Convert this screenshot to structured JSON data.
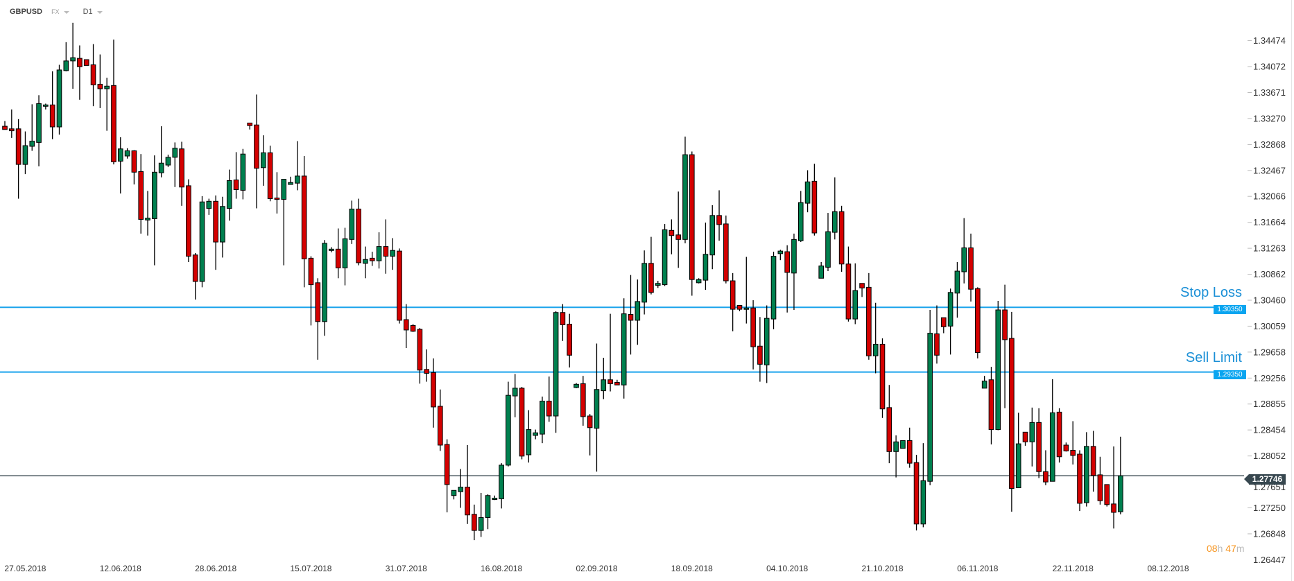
{
  "header": {
    "symbol": "GBPUSD",
    "market": "FX",
    "timeframe": "D1"
  },
  "colors": {
    "up": "#00804f",
    "down": "#d40000",
    "level": "#1aa3ec",
    "current": "#37474f",
    "timer": "#f7941d"
  },
  "levels": [
    {
      "name": "Stop Loss",
      "price": 1.3035,
      "label": "1.30350"
    },
    {
      "name": "Sell Limit",
      "price": 1.2935,
      "label": "1.29350"
    }
  ],
  "current_price": {
    "price": 1.27746,
    "label": "1.27746"
  },
  "timer": {
    "hours": "08",
    "h": "h",
    "minutes": "47",
    "m": "m"
  },
  "chart_data": {
    "type": "candlestick",
    "title": "GBPUSD D1",
    "ylim": [
      1.26447,
      1.35102
    ],
    "y_ticks": [
      "1.34474",
      "1.34072",
      "1.33671",
      "1.33270",
      "1.32868",
      "1.32467",
      "1.32066",
      "1.31664",
      "1.31263",
      "1.30862",
      "1.30460",
      "1.30059",
      "1.29658",
      "1.29256",
      "1.28855",
      "1.28454",
      "1.28052",
      "1.27651",
      "1.27250",
      "1.26848",
      "1.26447"
    ],
    "x_ticks": [
      {
        "candle": 3,
        "label": "27.05.2018"
      },
      {
        "candle": 17,
        "label": "12.06.2018"
      },
      {
        "candle": 31,
        "label": "28.06.2018"
      },
      {
        "candle": 45,
        "label": "15.07.2018"
      },
      {
        "candle": 59,
        "label": "31.07.2018"
      },
      {
        "candle": 73,
        "label": "16.08.2018"
      },
      {
        "candle": 87,
        "label": "02.09.2018"
      },
      {
        "candle": 101,
        "label": "18.09.2018"
      },
      {
        "candle": 115,
        "label": "04.10.2018"
      },
      {
        "candle": 129,
        "label": "21.10.2018"
      },
      {
        "candle": 143,
        "label": "06.11.2018"
      },
      {
        "candle": 157,
        "label": "22.11.2018"
      },
      {
        "candle": 171,
        "label": "08.12.2018"
      }
    ],
    "ohlc_fields": [
      "open",
      "high",
      "low",
      "close"
    ],
    "ohlc": [
      [
        1.3315,
        1.3323,
        1.331,
        1.331
      ],
      [
        1.3311,
        1.3341,
        1.3297,
        1.3308
      ],
      [
        1.3311,
        1.3326,
        1.3203,
        1.3256
      ],
      [
        1.3256,
        1.3307,
        1.3241,
        1.3285
      ],
      [
        1.3284,
        1.3349,
        1.3277,
        1.3292
      ],
      [
        1.329,
        1.3363,
        1.3253,
        1.335
      ],
      [
        1.3346,
        1.335,
        1.3341,
        1.3348
      ],
      [
        1.3348,
        1.34,
        1.3295,
        1.3314
      ],
      [
        1.3314,
        1.341,
        1.3302,
        1.3402
      ],
      [
        1.3401,
        1.3445,
        1.34,
        1.3416
      ],
      [
        1.3416,
        1.3475,
        1.3373,
        1.3421
      ],
      [
        1.342,
        1.344,
        1.3356,
        1.3407
      ],
      [
        1.3418,
        1.3418,
        1.3409,
        1.3409
      ],
      [
        1.341,
        1.3442,
        1.3346,
        1.3379
      ],
      [
        1.338,
        1.3426,
        1.3343,
        1.3373
      ],
      [
        1.3373,
        1.339,
        1.3308,
        1.3377
      ],
      [
        1.3378,
        1.3449,
        1.3256,
        1.326
      ],
      [
        1.3261,
        1.3298,
        1.3211,
        1.328
      ],
      [
        1.3269,
        1.3281,
        1.3265,
        1.3277
      ],
      [
        1.3277,
        1.3278,
        1.3225,
        1.3244
      ],
      [
        1.3245,
        1.3272,
        1.3149,
        1.3171
      ],
      [
        1.317,
        1.3215,
        1.3146,
        1.3173
      ],
      [
        1.3172,
        1.327,
        1.31,
        1.3244
      ],
      [
        1.3243,
        1.3315,
        1.3236,
        1.3258
      ],
      [
        1.3255,
        1.3271,
        1.3252,
        1.3267
      ],
      [
        1.3267,
        1.329,
        1.3221,
        1.3281
      ],
      [
        1.328,
        1.3291,
        1.3192,
        1.3221
      ],
      [
        1.3223,
        1.3233,
        1.3105,
        1.3114
      ],
      [
        1.3116,
        1.3119,
        1.3047,
        1.3075
      ],
      [
        1.3075,
        1.3207,
        1.3066,
        1.3198
      ],
      [
        1.3188,
        1.3203,
        1.3178,
        1.3199
      ],
      [
        1.3199,
        1.3208,
        1.3093,
        1.3136
      ],
      [
        1.3136,
        1.3206,
        1.3112,
        1.3191
      ],
      [
        1.3188,
        1.3248,
        1.3169,
        1.3231
      ],
      [
        1.3232,
        1.3275,
        1.3203,
        1.3217
      ],
      [
        1.3216,
        1.328,
        1.3202,
        1.3272
      ],
      [
        1.332,
        1.332,
        1.331,
        1.3316
      ],
      [
        1.3317,
        1.3364,
        1.3188,
        1.325
      ],
      [
        1.3251,
        1.3301,
        1.3223,
        1.3274
      ],
      [
        1.3274,
        1.3285,
        1.3199,
        1.3203
      ],
      [
        1.3204,
        1.3244,
        1.318,
        1.3202
      ],
      [
        1.3202,
        1.3233,
        1.31,
        1.3233
      ],
      [
        1.3225,
        1.3237,
        1.3225,
        1.3228
      ],
      [
        1.3227,
        1.3292,
        1.3216,
        1.3238
      ],
      [
        1.3238,
        1.3269,
        1.3066,
        1.311
      ],
      [
        1.3111,
        1.3114,
        1.3007,
        1.307
      ],
      [
        1.3073,
        1.308,
        1.2954,
        1.3013
      ],
      [
        1.3013,
        1.3139,
        1.2991,
        1.3134
      ],
      [
        1.3123,
        1.3128,
        1.312,
        1.3125
      ],
      [
        1.3125,
        1.3157,
        1.308,
        1.3096
      ],
      [
        1.3096,
        1.3158,
        1.3069,
        1.3141
      ],
      [
        1.314,
        1.32,
        1.3133,
        1.3187
      ],
      [
        1.3187,
        1.3203,
        1.31,
        1.3104
      ],
      [
        1.3103,
        1.3129,
        1.308,
        1.3109
      ],
      [
        1.3111,
        1.3121,
        1.3099,
        1.3107
      ],
      [
        1.3107,
        1.3151,
        1.3095,
        1.3129
      ],
      [
        1.3129,
        1.3171,
        1.3087,
        1.3114
      ],
      [
        1.3114,
        1.3142,
        1.3093,
        1.3123
      ],
      [
        1.3122,
        1.3126,
        1.301,
        1.3015
      ],
      [
        1.3016,
        1.304,
        1.2972,
        1.3
      ],
      [
        1.3007,
        1.3009,
        1.2997,
        1.2998
      ],
      [
        1.3001,
        1.3003,
        1.2917,
        1.2938
      ],
      [
        1.2939,
        1.297,
        1.292,
        1.2933
      ],
      [
        1.2934,
        1.2956,
        1.2849,
        1.2881
      ],
      [
        1.2882,
        1.2908,
        1.2813,
        1.2822
      ],
      [
        1.2823,
        1.2831,
        1.2718,
        1.2761
      ],
      [
        1.2744,
        1.2752,
        1.2738,
        1.2752
      ],
      [
        1.275,
        1.2785,
        1.2725,
        1.2757
      ],
      [
        1.2757,
        1.2822,
        1.27,
        1.2714
      ],
      [
        1.2715,
        1.273,
        1.2675,
        1.269
      ],
      [
        1.269,
        1.2748,
        1.268,
        1.271
      ],
      [
        1.271,
        1.2746,
        1.2692,
        1.2744
      ],
      [
        1.2738,
        1.2744,
        1.2737,
        1.274
      ],
      [
        1.2739,
        1.2794,
        1.2724,
        1.2791
      ],
      [
        1.2791,
        1.292,
        1.2789,
        1.2899
      ],
      [
        1.2898,
        1.2932,
        1.2865,
        1.291
      ],
      [
        1.291,
        1.2912,
        1.28,
        1.2805
      ],
      [
        1.2807,
        1.2876,
        1.2795,
        1.2846
      ],
      [
        1.2837,
        1.2846,
        1.2831,
        1.2841
      ],
      [
        1.2839,
        1.2897,
        1.2825,
        1.289
      ],
      [
        1.289,
        1.2928,
        1.2858,
        1.2867
      ],
      [
        1.2867,
        1.3029,
        1.2841,
        1.3027
      ],
      [
        1.3027,
        1.304,
        1.2983,
        1.3008
      ],
      [
        1.3009,
        1.3025,
        1.2942,
        1.2961
      ],
      [
        1.2911,
        1.2918,
        1.291,
        1.2916
      ],
      [
        1.2917,
        1.2929,
        1.2852,
        1.2866
      ],
      [
        1.2867,
        1.287,
        1.2806,
        1.2849
      ],
      [
        1.2848,
        1.2979,
        1.2781,
        1.2908
      ],
      [
        1.2906,
        1.2957,
        1.2893,
        1.2923
      ],
      [
        1.2923,
        1.3025,
        1.2905,
        1.2917
      ],
      [
        1.2919,
        1.2923,
        1.2915,
        1.2915
      ],
      [
        1.2915,
        1.3049,
        1.2894,
        1.3025
      ],
      [
        1.3024,
        1.3085,
        1.2962,
        1.3015
      ],
      [
        1.3015,
        1.3078,
        1.2977,
        1.3044
      ],
      [
        1.3043,
        1.3123,
        1.3024,
        1.3103
      ],
      [
        1.3103,
        1.3144,
        1.3055,
        1.3058
      ],
      [
        1.3069,
        1.3076,
        1.3065,
        1.3072
      ],
      [
        1.307,
        1.3164,
        1.3068,
        1.3155
      ],
      [
        1.3154,
        1.3171,
        1.3117,
        1.3146
      ],
      [
        1.3147,
        1.3214,
        1.3096,
        1.314
      ],
      [
        1.314,
        1.3299,
        1.3134,
        1.3271
      ],
      [
        1.3271,
        1.3276,
        1.3053,
        1.3078
      ],
      [
        1.3073,
        1.308,
        1.3072,
        1.3078
      ],
      [
        1.3077,
        1.3166,
        1.3062,
        1.3117
      ],
      [
        1.3116,
        1.3193,
        1.3094,
        1.3177
      ],
      [
        1.3177,
        1.3216,
        1.3138,
        1.3163
      ],
      [
        1.3164,
        1.3177,
        1.3072,
        1.3076
      ],
      [
        1.3076,
        1.3088,
        1.2998,
        1.3032
      ],
      [
        1.3038,
        1.3038,
        1.3029,
        1.3032
      ],
      [
        1.3032,
        1.3113,
        1.301,
        1.3034
      ],
      [
        1.3034,
        1.3046,
        1.2939,
        1.2974
      ],
      [
        1.2975,
        1.302,
        1.292,
        1.2947
      ],
      [
        1.2946,
        1.3038,
        1.2918,
        1.3018
      ],
      [
        1.3017,
        1.3121,
        1.3001,
        1.3114
      ],
      [
        1.3118,
        1.3124,
        1.3108,
        1.3122
      ],
      [
        1.3121,
        1.3131,
        1.3027,
        1.3089
      ],
      [
        1.3088,
        1.3149,
        1.3031,
        1.314
      ],
      [
        1.3138,
        1.3215,
        1.3136,
        1.3197
      ],
      [
        1.3196,
        1.3247,
        1.3182,
        1.3229
      ],
      [
        1.323,
        1.3257,
        1.3146,
        1.315
      ],
      [
        1.308,
        1.3105,
        1.308,
        1.3099
      ],
      [
        1.3097,
        1.3181,
        1.3091,
        1.3152
      ],
      [
        1.3151,
        1.3236,
        1.314,
        1.3183
      ],
      [
        1.3183,
        1.3192,
        1.309,
        1.3102
      ],
      [
        1.3102,
        1.3129,
        1.3013,
        1.3017
      ],
      [
        1.3017,
        1.3103,
        1.3009,
        1.3061
      ],
      [
        1.3072,
        1.3072,
        1.3051,
        1.3065
      ],
      [
        1.3066,
        1.3088,
        1.2954,
        1.296
      ],
      [
        1.296,
        1.3042,
        1.2933,
        1.2978
      ],
      [
        1.2978,
        1.2987,
        1.2864,
        1.2878
      ],
      [
        1.288,
        1.2915,
        1.2794,
        1.2812
      ],
      [
        1.2812,
        1.2837,
        1.2772,
        1.2827
      ],
      [
        1.2817,
        1.2829,
        1.2817,
        1.2829
      ],
      [
        1.2829,
        1.2849,
        1.2787,
        1.2794
      ],
      [
        1.2795,
        1.2807,
        1.269,
        1.27
      ],
      [
        1.27,
        1.2825,
        1.2695,
        1.2767
      ],
      [
        1.2766,
        1.3031,
        1.276,
        1.2995
      ],
      [
        1.2994,
        1.3038,
        1.2948,
        1.2961
      ],
      [
        1.3019,
        1.3019,
        1.2995,
        1.3005
      ],
      [
        1.3006,
        1.3064,
        1.2962,
        1.3058
      ],
      [
        1.3057,
        1.3105,
        1.3019,
        1.3091
      ],
      [
        1.309,
        1.3173,
        1.3072,
        1.3127
      ],
      [
        1.3127,
        1.3149,
        1.3044,
        1.3063
      ],
      [
        1.3064,
        1.3066,
        1.2956,
        1.2965
      ],
      [
        1.291,
        1.2929,
        1.291,
        1.2921
      ],
      [
        1.2923,
        1.2943,
        1.2823,
        1.2846
      ],
      [
        1.2846,
        1.3045,
        1.2845,
        1.3031
      ],
      [
        1.3031,
        1.307,
        1.2879,
        1.2985
      ],
      [
        1.2987,
        1.3028,
        1.2719,
        1.2755
      ],
      [
        1.2756,
        1.2872,
        1.2756,
        1.2824
      ],
      [
        1.2842,
        1.2842,
        1.2821,
        1.2827
      ],
      [
        1.2827,
        1.288,
        1.2789,
        1.2857
      ],
      [
        1.2857,
        1.2879,
        1.2771,
        1.2781
      ],
      [
        1.2781,
        1.2814,
        1.276,
        1.2765
      ],
      [
        1.2766,
        1.2924,
        1.2766,
        1.2872
      ],
      [
        1.2873,
        1.2879,
        1.2795,
        1.2804
      ],
      [
        1.2822,
        1.2826,
        1.2812,
        1.2813
      ],
      [
        1.2814,
        1.2859,
        1.2792,
        1.2806
      ],
      [
        1.2808,
        1.2814,
        1.272,
        1.2732
      ],
      [
        1.2733,
        1.2842,
        1.2727,
        1.282
      ],
      [
        1.282,
        1.2844,
        1.275,
        1.2775
      ],
      [
        1.2776,
        1.2804,
        1.273,
        1.2736
      ],
      [
        1.2761,
        1.2761,
        1.2727,
        1.273
      ],
      [
        1.2731,
        1.282,
        1.2693,
        1.2718
      ],
      [
        1.2719,
        1.2835,
        1.2715,
        1.27746
      ]
    ]
  }
}
